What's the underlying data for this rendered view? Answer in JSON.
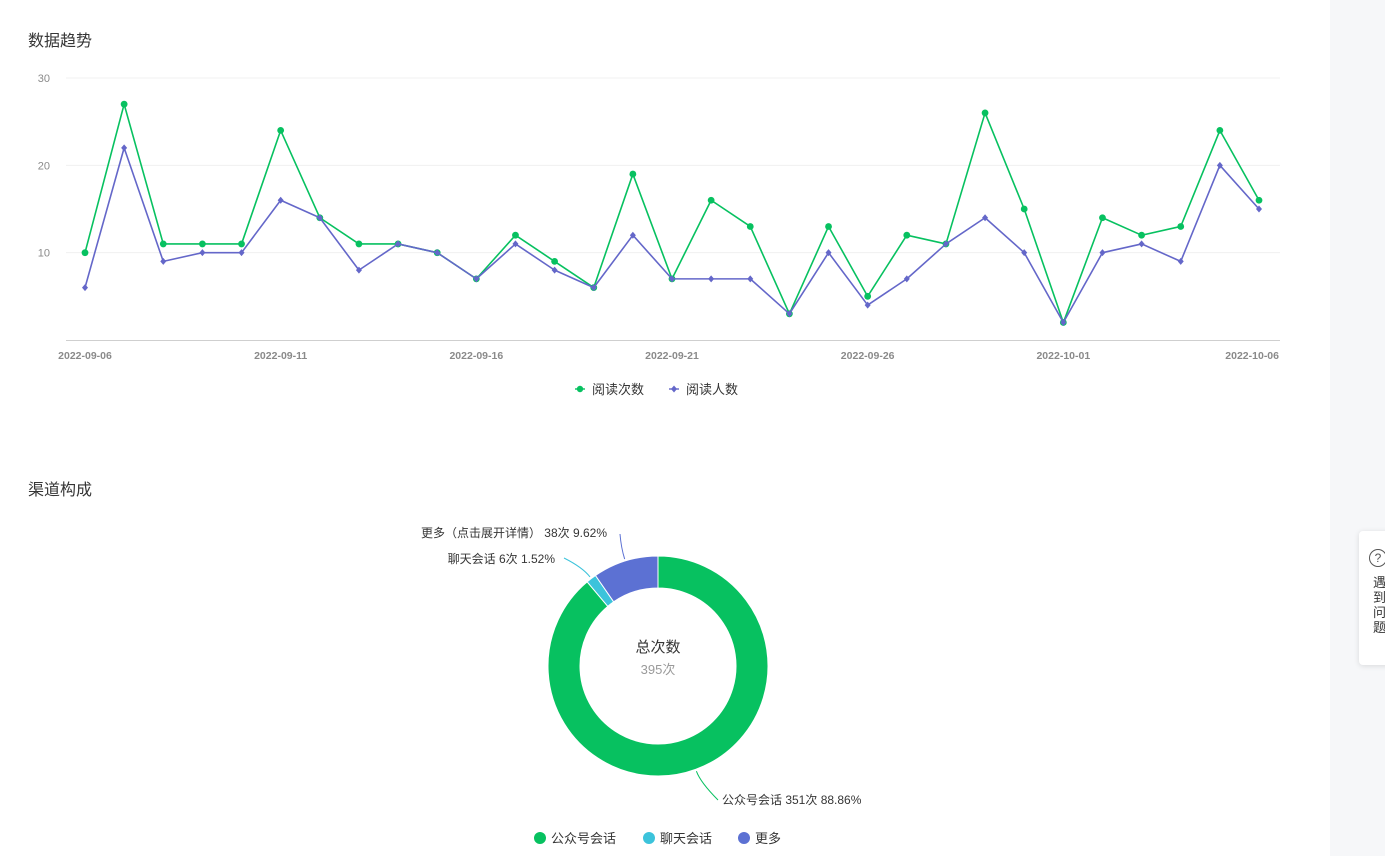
{
  "sections": {
    "trend_title": "数据趋势",
    "channel_title": "渠道构成"
  },
  "help": {
    "icon": "question-circle-icon",
    "glyph": "?",
    "text": "遇到问题"
  },
  "chart_data": [
    {
      "type": "line",
      "title": "数据趋势",
      "x_tick_labels": [
        "2022-09-06",
        "2022-09-11",
        "2022-09-16",
        "2022-09-21",
        "2022-09-26",
        "2022-10-01",
        "2022-10-06"
      ],
      "x_start": "2022-09-06",
      "x_end": "2022-10-06",
      "y_ticks": [
        10,
        20,
        30
      ],
      "ylim": [
        0,
        30
      ],
      "grid": true,
      "legend_position": "bottom-center",
      "series": [
        {
          "name": "阅读次数",
          "color": "#07c160",
          "marker": "circle",
          "values": [
            10,
            27,
            11,
            11,
            11,
            24,
            14,
            11,
            11,
            10,
            7,
            12,
            9,
            6,
            19,
            7,
            16,
            13,
            3,
            13,
            5,
            12,
            11,
            26,
            15,
            2,
            14,
            12,
            13,
            24,
            16
          ]
        },
        {
          "name": "阅读人数",
          "color": "#6467c9",
          "marker": "diamond",
          "values": [
            6,
            22,
            9,
            10,
            10,
            16,
            14,
            8,
            11,
            10,
            7,
            11,
            8,
            6,
            12,
            7,
            7,
            7,
            3,
            10,
            4,
            7,
            11,
            14,
            10,
            2,
            10,
            11,
            9,
            20,
            15
          ]
        }
      ]
    },
    {
      "type": "pie",
      "style": "donut",
      "title": "渠道构成",
      "center_label": "总次数",
      "center_value": "395次",
      "legend_position": "bottom-center",
      "slices": [
        {
          "name": "公众号会话",
          "legend": "公众号会话",
          "value": 351,
          "percent": 88.86,
          "label": "公众号会话 351次 88.86%",
          "color": "#07c160"
        },
        {
          "name": "聊天会话",
          "legend": "聊天会话",
          "value": 6,
          "percent": 1.52,
          "label": "聊天会话 6次 1.52%",
          "color": "#3cc3db"
        },
        {
          "name": "更多",
          "legend": "更多",
          "value": 38,
          "percent": 9.62,
          "label": "更多（点击展开详情） 38次 9.62%",
          "color": "#5c71d3"
        }
      ]
    }
  ]
}
